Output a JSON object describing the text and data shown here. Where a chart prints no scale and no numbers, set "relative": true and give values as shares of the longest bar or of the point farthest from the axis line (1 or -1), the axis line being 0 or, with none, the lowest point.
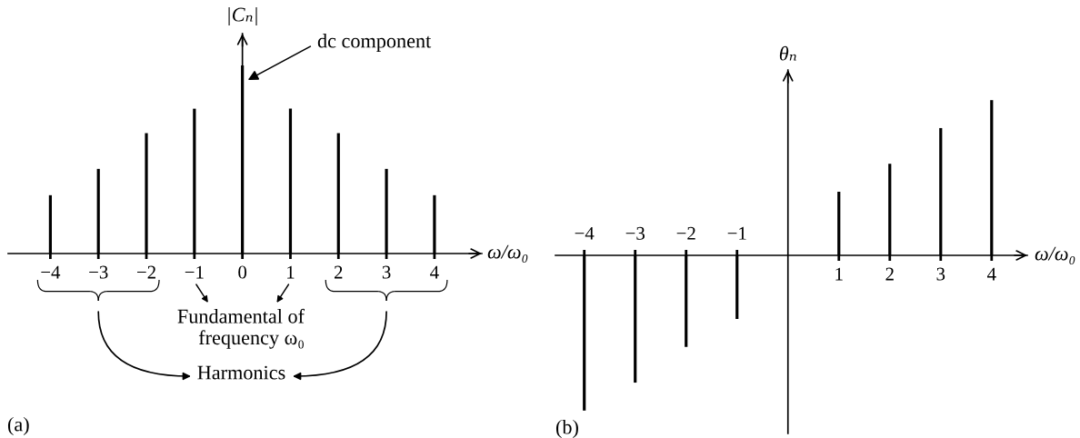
{
  "chart_data": [
    {
      "type": "bar",
      "relative": true,
      "xlabel": "ω/ω₀",
      "ylabel": "|Cₙ|",
      "categories": [
        "−4",
        "−3",
        "−2",
        "−1",
        "0",
        "1",
        "2",
        "3",
        "4"
      ],
      "values": [
        0.31,
        0.45,
        0.64,
        0.77,
        1,
        0.77,
        0.64,
        0.45,
        0.31
      ],
      "color": "#000000",
      "annotations": [
        "dc component",
        "Fundamental of\nfrequency ω₀",
        "Harmonics",
        "(a)"
      ]
    },
    {
      "type": "bar",
      "relative": true,
      "xlabel": "ω/ω₀",
      "ylabel": "θₙ",
      "categories": [
        "−4",
        "−3",
        "−2",
        "−1",
        null,
        "1",
        "2",
        "3",
        "4"
      ],
      "values": [
        -1,
        -0.82,
        -0.59,
        -0.41,
        null,
        0.41,
        0.59,
        0.82,
        1
      ],
      "color": "#000000",
      "annotations": [
        "(b)"
      ]
    }
  ]
}
